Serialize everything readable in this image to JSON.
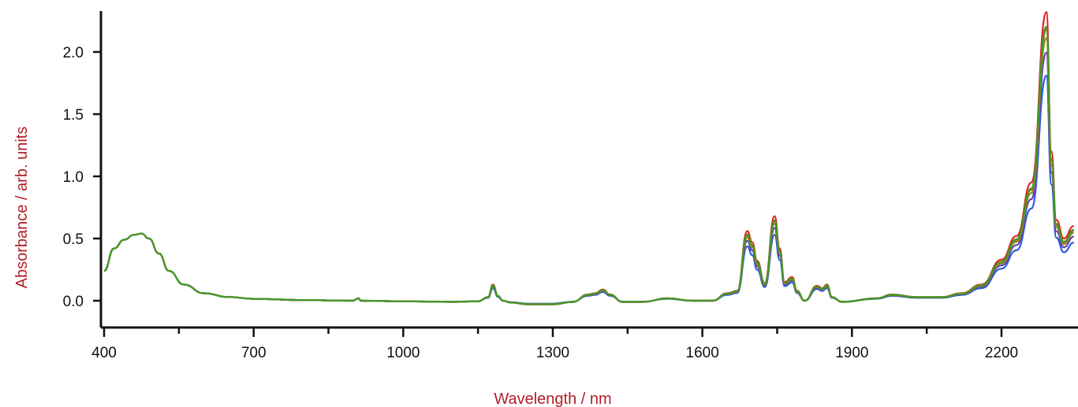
{
  "chart_data": {
    "type": "line",
    "xlabel": "Wavelength / nm",
    "ylabel": "Absorbance / arb. units",
    "x_ticks": [
      400,
      700,
      1000,
      1300,
      1600,
      1900,
      2200
    ],
    "x_tick_labels": [
      "400",
      "700",
      "1000",
      "1300",
      "1600",
      "1900",
      "2200"
    ],
    "y_ticks": [
      0.0,
      0.5,
      1.0,
      1.5,
      2.0
    ],
    "y_tick_labels": [
      "0.0",
      "0.5",
      "1.0",
      "1.5",
      "2.0"
    ],
    "xlim": [
      400,
      2345
    ],
    "ylim": [
      -0.2,
      2.35
    ],
    "grid": false,
    "label_color": "#b01e2a",
    "series": [
      {
        "color": "#2d5be3",
        "scale": 0.78
      },
      {
        "color": "#6a3fb0",
        "scale": 0.86
      },
      {
        "color": "#e0231c",
        "scale": 1.0
      },
      {
        "color": "#d93a1c",
        "scale": 0.94
      },
      {
        "color": "#8a8a1c",
        "scale": 0.91
      },
      {
        "color": "#3f9a2a",
        "scale": 0.95
      }
    ],
    "base_spectrum": {
      "x": [
        400,
        420,
        440,
        460,
        475,
        490,
        510,
        530,
        560,
        600,
        650,
        700,
        800,
        900,
        905,
        910,
        915,
        1000,
        1100,
        1150,
        1170,
        1180,
        1190,
        1200,
        1215,
        1250,
        1300,
        1340,
        1370,
        1385,
        1400,
        1415,
        1440,
        1480,
        1530,
        1580,
        1620,
        1650,
        1670,
        1690,
        1700,
        1710,
        1725,
        1745,
        1755,
        1765,
        1780,
        1790,
        1805,
        1830,
        1840,
        1850,
        1860,
        1880,
        1950,
        1980,
        2030,
        2080,
        2120,
        2160,
        2200,
        2230,
        2260,
        2290,
        2300,
        2310,
        2325,
        2345
      ],
      "y": [
        0.24,
        0.42,
        0.49,
        0.53,
        0.54,
        0.5,
        0.38,
        0.24,
        0.13,
        0.06,
        0.03,
        0.015,
        0.005,
        0.0,
        0.01,
        0.02,
        0.0,
        -0.005,
        -0.01,
        -0.005,
        0.03,
        0.13,
        0.04,
        0.0,
        -0.015,
        -0.03,
        -0.03,
        -0.01,
        0.05,
        0.06,
        0.09,
        0.05,
        -0.01,
        -0.01,
        0.02,
        0.0,
        0.0,
        0.06,
        0.08,
        0.56,
        0.47,
        0.32,
        0.14,
        0.68,
        0.42,
        0.15,
        0.19,
        0.08,
        0.0,
        0.12,
        0.1,
        0.13,
        0.03,
        -0.01,
        0.02,
        0.05,
        0.03,
        0.03,
        0.06,
        0.13,
        0.33,
        0.52,
        0.95,
        2.32,
        1.2,
        0.65,
        0.5,
        0.6
      ]
    }
  }
}
